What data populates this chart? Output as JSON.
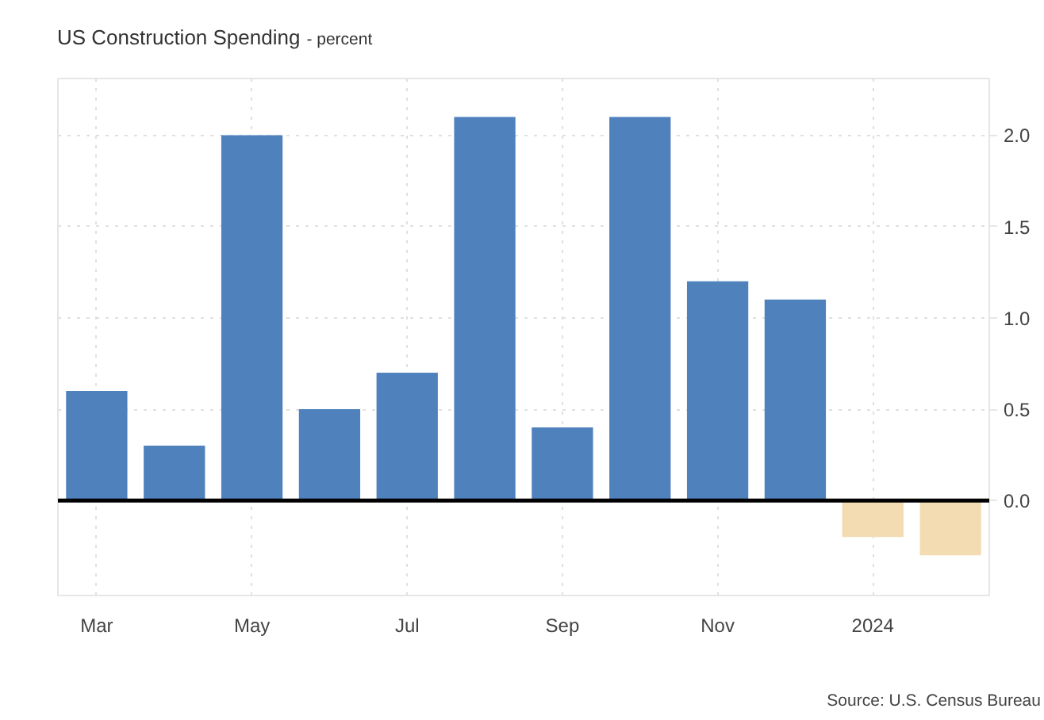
{
  "chart_data": {
    "type": "bar",
    "title": "US Construction Spending",
    "subtitle": "- percent",
    "categories": [
      "Mar",
      null,
      "May",
      null,
      "Jul",
      null,
      "Sep",
      null,
      "Nov",
      null,
      "2024",
      null
    ],
    "values": [
      0.6,
      0.3,
      2.0,
      0.5,
      0.7,
      2.1,
      0.4,
      2.1,
      1.2,
      1.1,
      -0.2,
      -0.3
    ],
    "colors": [
      "#4f81bd",
      "#4f81bd",
      "#4f81bd",
      "#4f81bd",
      "#4f81bd",
      "#4f81bd",
      "#4f81bd",
      "#4f81bd",
      "#4f81bd",
      "#4f81bd",
      "#f3dcb2",
      "#f3dcb2"
    ],
    "ylim": [
      -0.52,
      2.31
    ],
    "yticks": [
      {
        "value": 0,
        "label": "0.0"
      },
      0.5,
      {
        "value": 1,
        "label": "1.0"
      },
      1.5,
      {
        "value": 2,
        "label": "2.0"
      }
    ],
    "grid": true,
    "ref_lines": [
      {
        "axis": "y",
        "value": 0,
        "color": "#000000"
      }
    ],
    "annotations": [
      "Source: U.S. Census Bureau"
    ]
  }
}
